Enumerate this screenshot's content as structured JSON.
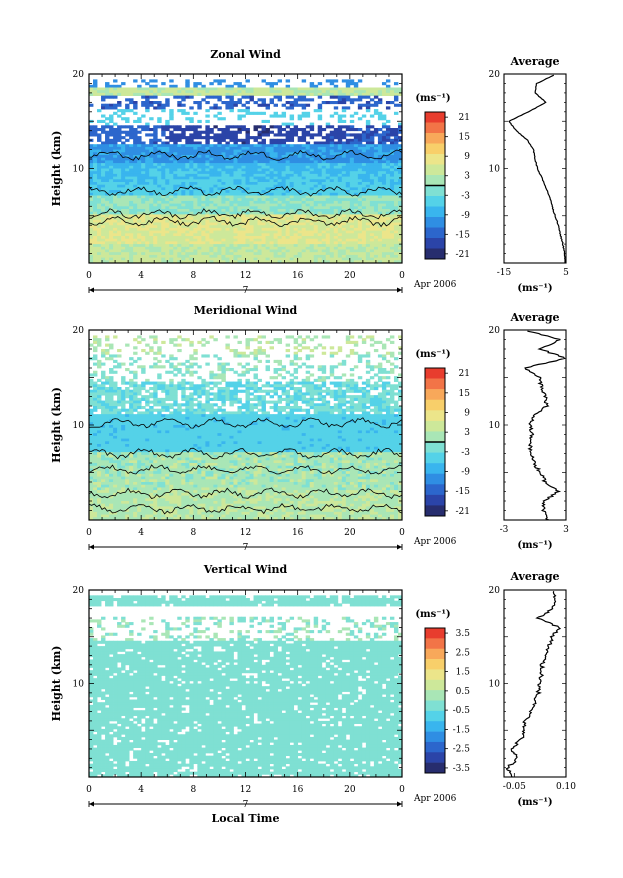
{
  "colors": {
    "frame": "#000000",
    "scale": [
      "#272d6e",
      "#2b44a8",
      "#2c66cc",
      "#2f8ee3",
      "#39b5ee",
      "#54d2e8",
      "#7fe0d3",
      "#a9e6b6",
      "#cde89a",
      "#ece58a",
      "#f8cf6a",
      "#f8a85a",
      "#f27447",
      "#e83d2e"
    ]
  },
  "chart_data": [
    {
      "type": "heatmap",
      "title": "Zonal Wind",
      "ylabel": "Height (km)",
      "ylim": [
        0,
        20
      ],
      "yticks": [
        "20",
        "10"
      ],
      "xlim": [
        0,
        24
      ],
      "xticks": [
        "0",
        "4",
        "8",
        "12",
        "16",
        "20",
        "0"
      ],
      "date_axis": {
        "day_label": "7",
        "month_label": "Apr 2006"
      },
      "colorbar": {
        "unit": "(ms⁻¹)",
        "range": [
          -21,
          21
        ],
        "ticks": [
          "21",
          "15",
          "9",
          "3",
          "-3",
          "-9",
          "-15",
          "-21"
        ],
        "zero_line": true
      },
      "mean_profile": {
        "title": "Average",
        "xlim": [
          -15,
          5
        ],
        "xticks": [
          "-15",
          "5"
        ],
        "yticks": [
          "20",
          "10"
        ],
        "xlabel": "(ms⁻¹)",
        "height_km": [
          0,
          1,
          2,
          3,
          4,
          5,
          6,
          7,
          8,
          9,
          10,
          11,
          12,
          13,
          14,
          15,
          16,
          17,
          18,
          19,
          20
        ],
        "wind": [
          4.8,
          4.5,
          4.0,
          3.2,
          2.5,
          1.5,
          0.5,
          -0.3,
          -1.5,
          -2.8,
          -4.2,
          -5.0,
          -5.5,
          -7.5,
          -11.0,
          -13.5,
          -7.0,
          -1.5,
          -5.0,
          -4.5,
          2.0
        ]
      }
    },
    {
      "type": "heatmap",
      "title": "Meridional Wind",
      "ylabel": "Height (km)",
      "ylim": [
        0,
        20
      ],
      "yticks": [
        "20",
        "10"
      ],
      "xlim": [
        0,
        24
      ],
      "xticks": [
        "0",
        "4",
        "8",
        "12",
        "16",
        "20",
        "0"
      ],
      "date_axis": {
        "day_label": "7",
        "month_label": "Apr 2006"
      },
      "colorbar": {
        "unit": "(ms⁻¹)",
        "range": [
          -21,
          21
        ],
        "ticks": [
          "21",
          "15",
          "9",
          "3",
          "-3",
          "-9",
          "-15",
          "-21"
        ],
        "zero_line": true
      },
      "mean_profile": {
        "title": "Average",
        "xlim": [
          -3,
          3
        ],
        "xticks": [
          "-3",
          "3"
        ],
        "yticks": [
          "20",
          "10"
        ],
        "xlabel": "(ms⁻¹)",
        "height_km": [
          0,
          1,
          2,
          3,
          4,
          5,
          6,
          7,
          8,
          9,
          10,
          11,
          12,
          13,
          14,
          15,
          16,
          17,
          18,
          19,
          20
        ],
        "wind": [
          1.3,
          0.8,
          0.9,
          2.2,
          1.0,
          0.5,
          -0.1,
          -0.4,
          -0.5,
          -0.3,
          -0.5,
          0.0,
          1.1,
          1.0,
          0.6,
          0.5,
          -1.0,
          3.0,
          0.5,
          2.5,
          -1.0
        ]
      }
    },
    {
      "type": "heatmap",
      "title": "Vertical Wind",
      "ylabel": "Height (km)",
      "xlabel": "Local Time",
      "ylim": [
        0,
        20
      ],
      "yticks": [
        "20",
        "10"
      ],
      "xlim": [
        0,
        24
      ],
      "xticks": [
        "0",
        "4",
        "8",
        "12",
        "16",
        "20",
        "0"
      ],
      "date_axis": {
        "day_label": "7",
        "month_label": "Apr 2006"
      },
      "colorbar": {
        "unit": "(ms⁻¹)",
        "range": [
          -3.5,
          3.5
        ],
        "ticks": [
          "3.5",
          "2.5",
          "1.5",
          "0.5",
          "-0.5",
          "-1.5",
          "-2.5",
          "-3.5"
        ],
        "zero_line": false
      },
      "mean_profile": {
        "title": "Average",
        "xlim": [
          -0.08,
          0.1
        ],
        "xticks": [
          "-0.05",
          "0.10"
        ],
        "yticks": [
          "20",
          "10"
        ],
        "xlabel": "(ms⁻¹)",
        "height_km": [
          0,
          1,
          2,
          3,
          4,
          5,
          6,
          7,
          8,
          9,
          10,
          11,
          12,
          13,
          14,
          15,
          16,
          17,
          18,
          19,
          20
        ],
        "wind": [
          -0.06,
          -0.07,
          -0.04,
          -0.06,
          -0.03,
          -0.02,
          -0.02,
          0.0,
          0.01,
          0.02,
          0.02,
          0.03,
          0.03,
          0.04,
          0.05,
          0.06,
          0.08,
          0.02,
          0.06,
          0.07,
          0.06
        ]
      }
    }
  ]
}
